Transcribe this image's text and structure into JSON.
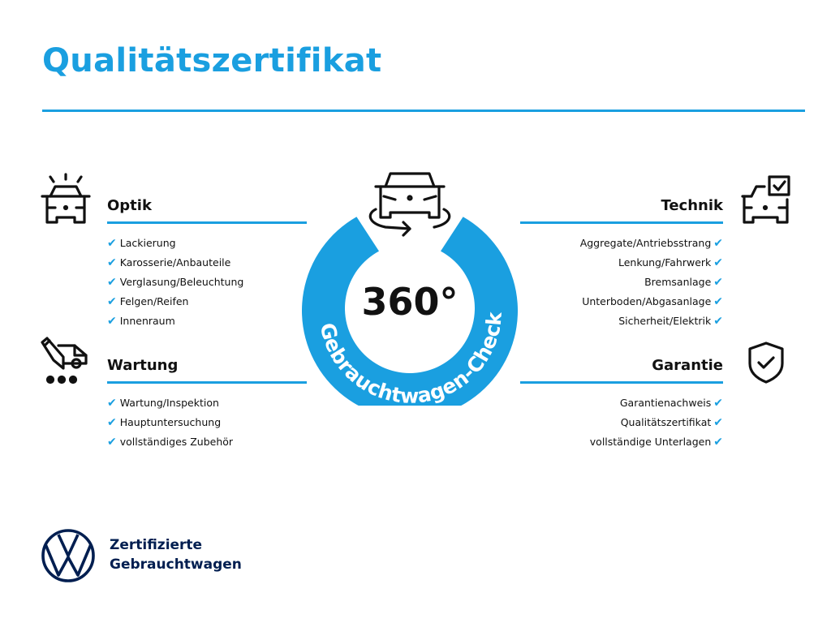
{
  "header": {
    "title": "Qualitätszertifikat"
  },
  "colors": {
    "accent": "#1a9fe0",
    "brand_dark": "#001e50",
    "text": "#111111"
  },
  "center": {
    "degrees": "360°",
    "ring_text": "Gebrauchtwagen-Check",
    "icon": "car-rotate-icon"
  },
  "sections": {
    "optik": {
      "title": "Optik",
      "icon": "car-lights-icon",
      "items": [
        "Lackierung",
        "Karosserie/Anbauteile",
        "Verglasung/Beleuchtung",
        "Felgen/Reifen",
        "Innenraum"
      ]
    },
    "wartung": {
      "title": "Wartung",
      "icon": "car-service-icon",
      "items": [
        "Wartung/Inspektion",
        "Hauptuntersuchung",
        "vollständiges Zubehör"
      ]
    },
    "technik": {
      "title": "Technik",
      "icon": "car-checkbox-icon",
      "items": [
        "Aggregate/Antriebsstrang",
        "Lenkung/Fahrwerk",
        "Bremsanlage",
        "Unterboden/Abgasanlage",
        "Sicherheit/Elektrik"
      ]
    },
    "garantie": {
      "title": "Garantie",
      "icon": "shield-check-icon",
      "items": [
        "Garantienachweis",
        "Qualitätszertifikat",
        "vollständige Unterlagen"
      ]
    }
  },
  "check_glyph": "✔",
  "footer": {
    "line1": "Zertifizierte",
    "line2": "Gebrauchtwagen",
    "logo": "vw-logo"
  }
}
